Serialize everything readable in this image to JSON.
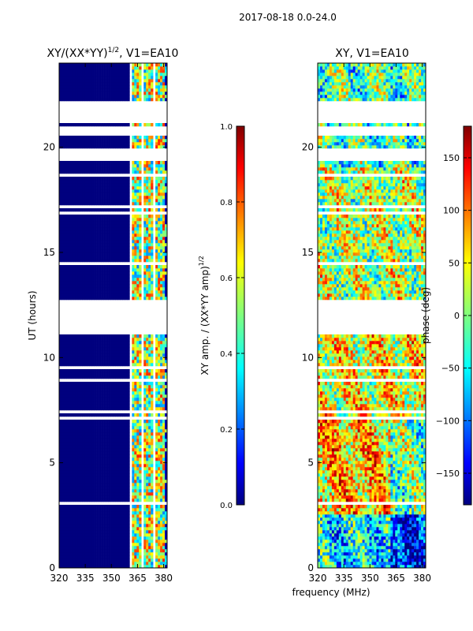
{
  "suptitle": "2017-08-18 0.0-24.0",
  "colors": {
    "jet_stops": [
      "#00007f",
      "#0000ff",
      "#007fff",
      "#00ffff",
      "#7fff7f",
      "#ffff00",
      "#ff7f00",
      "#ff0000",
      "#7f0000"
    ],
    "white": "#ffffff",
    "axis": "#000000"
  },
  "chart_data": [
    {
      "type": "heatmap",
      "panel": "left",
      "title": "XY/(XX*YY)",
      "title_sup": "1/2",
      "title_suffix": ", V1=EA10",
      "ylabel": "UT (hours)",
      "xlabel": "",
      "xlim": [
        320,
        382
      ],
      "ylim": [
        0,
        24
      ],
      "xticks": [
        320,
        335,
        350,
        365,
        380
      ],
      "yticks": [
        0,
        5,
        10,
        15,
        20
      ],
      "colorbar": {
        "label": "XY amp. / (XX*YY amp)",
        "label_sup": "1/2",
        "range": [
          0.0,
          1.0
        ],
        "ticks": [
          "0.0",
          "0.2",
          "0.4",
          "0.6",
          "0.8",
          "1.0"
        ],
        "tick_values": [
          0.0,
          0.2,
          0.4,
          0.6,
          0.8,
          1.0
        ]
      },
      "data_gaps_ut_hours": [
        [
          11.3,
          12.7
        ],
        [
          21.2,
          22.2
        ],
        [
          19.3,
          19.9
        ],
        [
          20.5,
          20.8
        ]
      ],
      "active_band_mhz": [
        360,
        380
      ],
      "description_values": {
        "low_band_value": 0.0,
        "active_band_range": [
          0.2,
          0.9
        ]
      }
    },
    {
      "type": "heatmap",
      "panel": "right",
      "title": "XY, V1=EA10",
      "ylabel": "",
      "xlabel": "frequency (MHz)",
      "xlim": [
        320,
        382
      ],
      "ylim": [
        0,
        24
      ],
      "xticks": [
        320,
        335,
        350,
        365,
        380
      ],
      "yticks": [
        0,
        5,
        10,
        15,
        20
      ],
      "colorbar": {
        "label": "phase (deg)",
        "range": [
          -180,
          180
        ],
        "ticks": [
          "150",
          "100",
          "50",
          "0",
          "−50",
          "−100",
          "−150"
        ],
        "tick_values": [
          150,
          100,
          50,
          0,
          -50,
          -100,
          -150
        ]
      },
      "data_gaps_ut_hours": [
        [
          11.3,
          12.7
        ],
        [
          21.2,
          22.2
        ],
        [
          19.3,
          19.9
        ],
        [
          20.5,
          20.8
        ]
      ]
    }
  ]
}
